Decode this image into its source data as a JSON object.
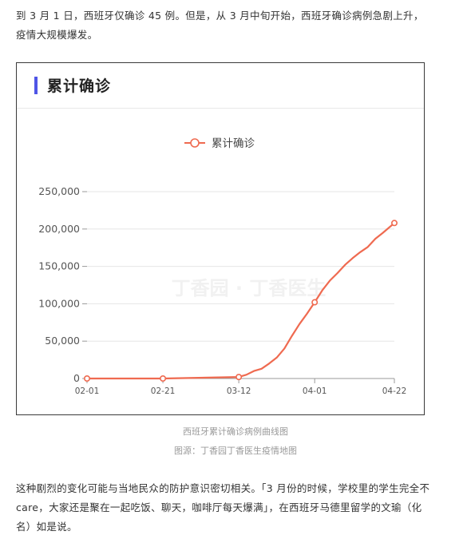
{
  "article": {
    "para_top": "到 3 月 1 日，西班牙仅确诊 45 例。但是，从 3 月中旬开始，西班牙确诊病例急剧上升，疫情大规模爆发。",
    "para_bottom": "这种剧烈的变化可能与当地民众的防护意识密切相关。「3 月份的时候，学校里的学生完全不 care，大家还是聚在一起吃饭、聊天，咖啡厅每天爆满」，在西班牙马德里留学的文瑜（化名）如是说。",
    "caption": "西班牙累计确诊病例曲线图",
    "source": "图源：丁香园丁香医生疫情地图"
  },
  "card": {
    "title": "累计确诊",
    "watermark": "丁香园 · 丁香医生",
    "accent_color": "#4f55e6"
  },
  "chart_data": {
    "type": "line",
    "title": "累计确诊",
    "xlabel": "",
    "ylabel": "",
    "ylim": [
      0,
      250000
    ],
    "y_ticks": [
      0,
      50000,
      100000,
      150000,
      200000,
      250000
    ],
    "y_tick_labels": [
      "0",
      "50,000",
      "100,000",
      "150,000",
      "200,000",
      "250,000"
    ],
    "x_ticks": [
      "02-01",
      "02-21",
      "03-12",
      "04-01",
      "04-22"
    ],
    "legend_position": "top-center",
    "grid": true,
    "series": [
      {
        "name": "累计确诊",
        "color": "#ef6a50",
        "x": [
          "02-01",
          "02-21",
          "03-12",
          "03-14",
          "03-16",
          "03-18",
          "03-20",
          "03-22",
          "03-24",
          "03-26",
          "03-28",
          "03-30",
          "04-01",
          "04-03",
          "04-05",
          "04-07",
          "04-09",
          "04-11",
          "04-13",
          "04-15",
          "04-17",
          "04-19",
          "04-22"
        ],
        "values": [
          0,
          0,
          2000,
          5000,
          10000,
          13000,
          20000,
          28000,
          40000,
          57000,
          73000,
          87000,
          102000,
          118000,
          131000,
          141000,
          152000,
          161000,
          169000,
          176000,
          187000,
          195000,
          208000
        ],
        "markers": [
          "02-01",
          "02-21",
          "03-12",
          "04-01",
          "04-22"
        ]
      }
    ]
  }
}
